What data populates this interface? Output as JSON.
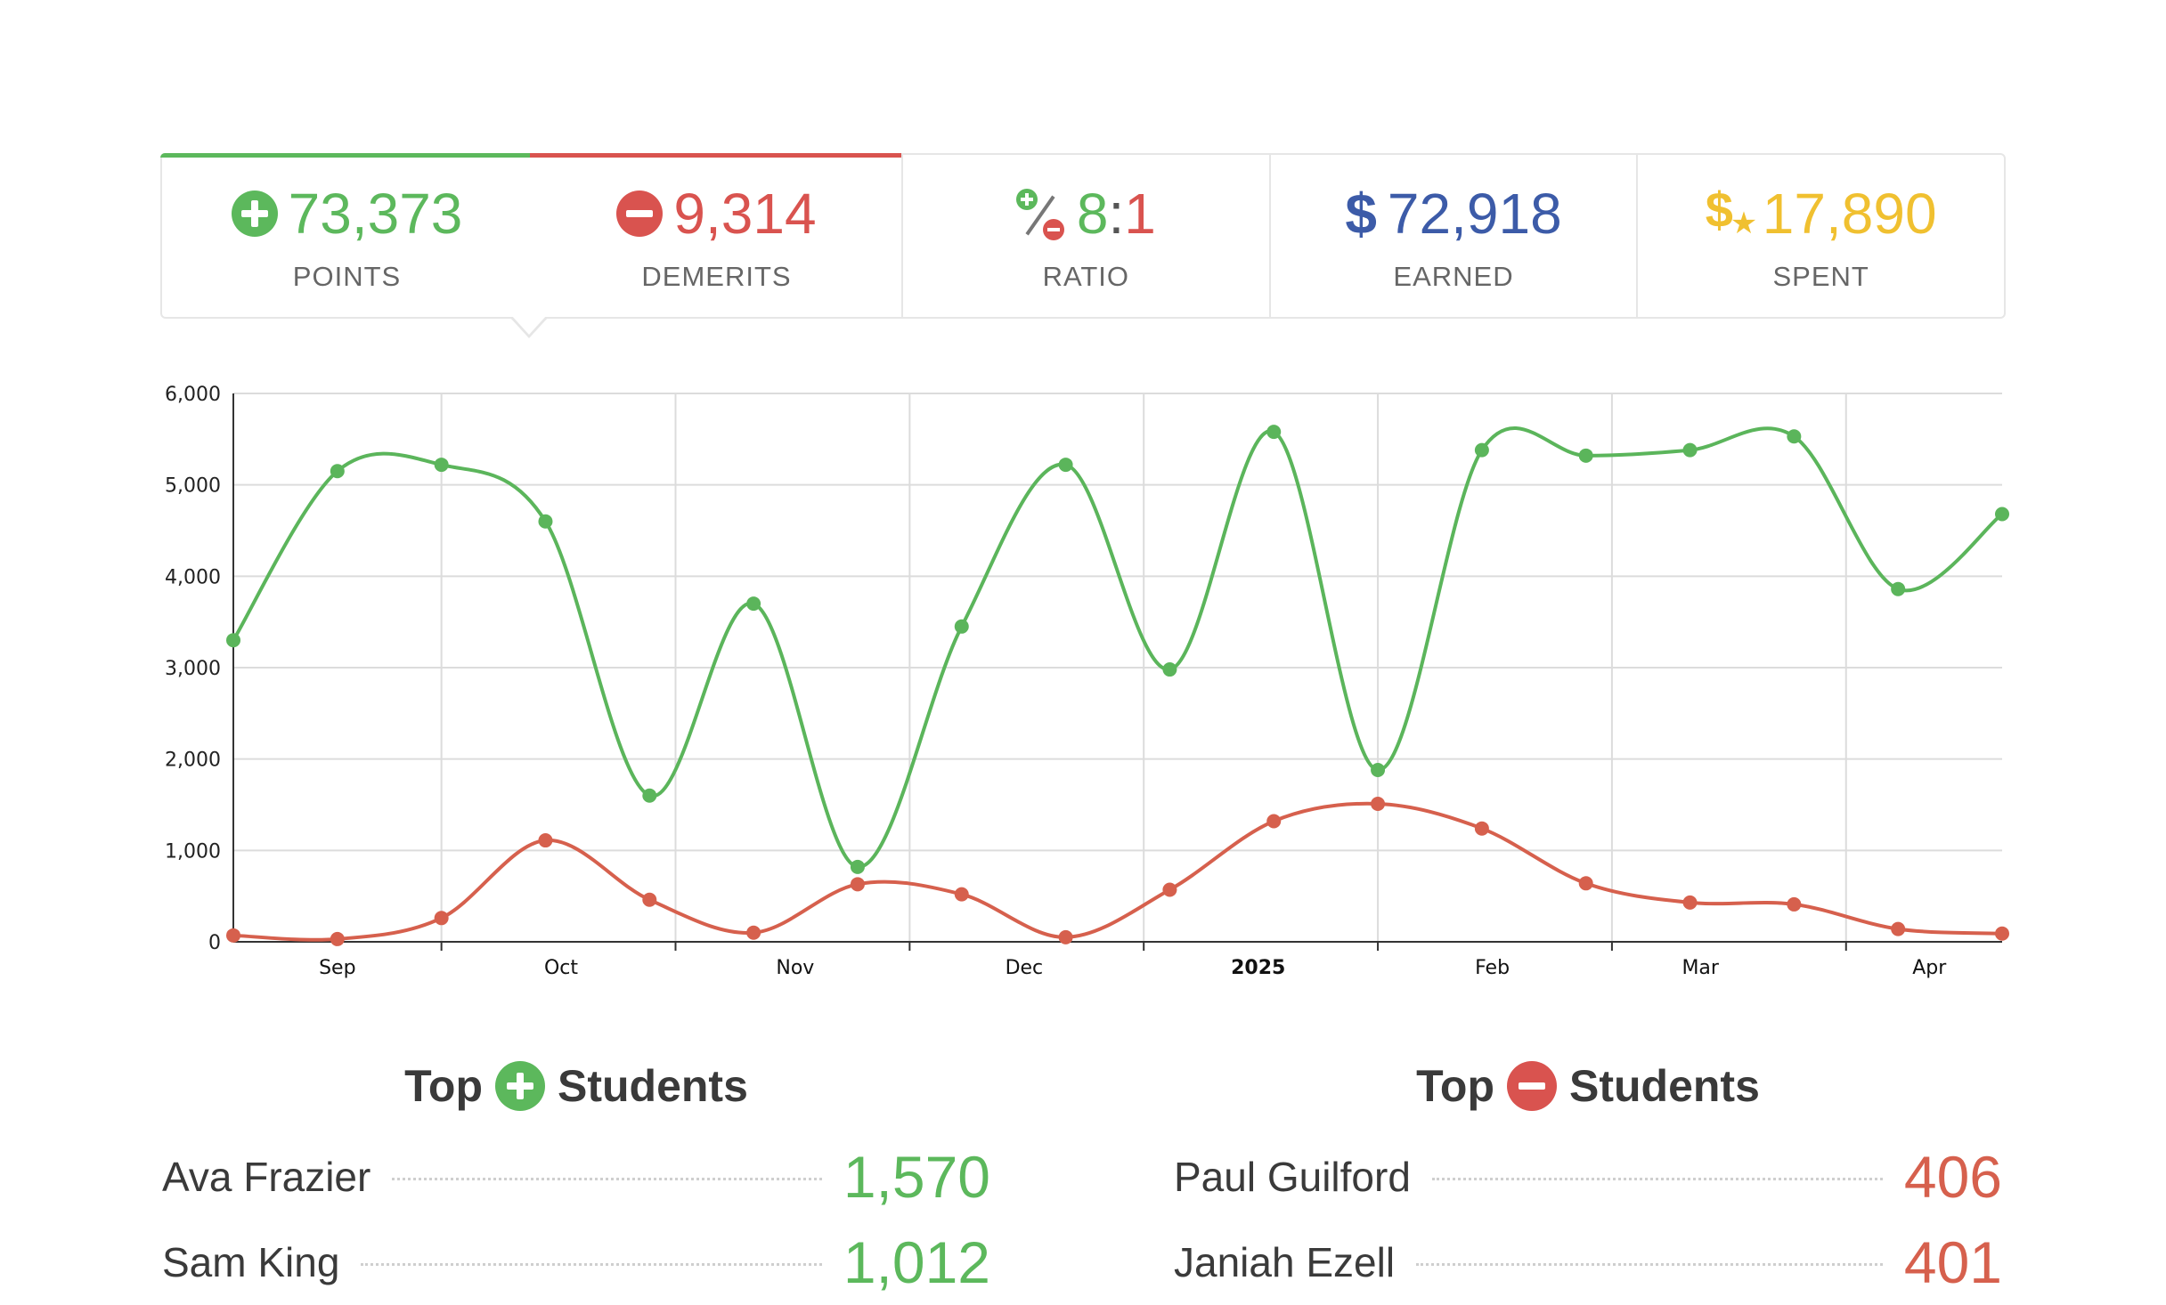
{
  "stats": {
    "points": {
      "value": "73,373",
      "label": "POINTS"
    },
    "demerits": {
      "value": "9,314",
      "label": "DEMERITS"
    },
    "ratio": {
      "value_left": "8",
      "sep": ":",
      "value_right": "1",
      "label": "RATIO"
    },
    "earned": {
      "icon": "$",
      "value": "72,918",
      "label": "EARNED"
    },
    "spent": {
      "icon": "$",
      "star": "★",
      "value": "17,890",
      "label": "SPENT"
    }
  },
  "colors": {
    "green": "#5cb85c",
    "red": "#d9534f",
    "blue": "#3c5ba8",
    "gold": "#f0c030",
    "chart_green": "#5bb55b",
    "chart_red": "#d6604d"
  },
  "chart_data": {
    "type": "line",
    "x_tick_labels": [
      "Sep",
      "Oct",
      "Nov",
      "Dec",
      "2025",
      "Feb",
      "Mar",
      "Apr"
    ],
    "bold_tick_label": "2025",
    "ylim": [
      0,
      6000
    ],
    "y_ticks": [
      0,
      1000,
      2000,
      3000,
      4000,
      5000,
      6000
    ],
    "y_tick_labels": [
      "0",
      "1,000",
      "2,000",
      "3,000",
      "4,000",
      "5,000",
      "6,000"
    ],
    "x_range": [
      0,
      34
    ],
    "grid": true,
    "series": [
      {
        "color": "#5bb55b",
        "x": [
          0,
          2,
          4,
          6,
          8,
          10,
          12,
          14,
          16,
          18,
          20,
          22,
          24,
          26,
          28,
          30,
          32,
          34
        ],
        "values": [
          3300,
          5150,
          5220,
          4600,
          1600,
          3700,
          820,
          3450,
          5220,
          2980,
          5580,
          1880,
          5380,
          5320,
          5380,
          5530,
          3860,
          4680
        ]
      },
      {
        "color": "#d6604d",
        "x": [
          0,
          2,
          4,
          6,
          8,
          10,
          12,
          14,
          16,
          18,
          20,
          22,
          24,
          26,
          28,
          30,
          32,
          34
        ],
        "values": [
          70,
          30,
          260,
          1110,
          460,
          100,
          630,
          520,
          50,
          570,
          1320,
          1510,
          1240,
          640,
          430,
          410,
          140,
          90
        ]
      }
    ]
  },
  "top_positive": {
    "title_left": "Top",
    "title_right": "Students",
    "rows": [
      {
        "name": "Ava Frazier",
        "value": "1,570"
      },
      {
        "name": "Sam King",
        "value": "1,012"
      }
    ]
  },
  "top_negative": {
    "title_left": "Top",
    "title_right": "Students",
    "rows": [
      {
        "name": "Paul Guilford",
        "value": "406"
      },
      {
        "name": "Janiah Ezell",
        "value": "401"
      }
    ]
  }
}
